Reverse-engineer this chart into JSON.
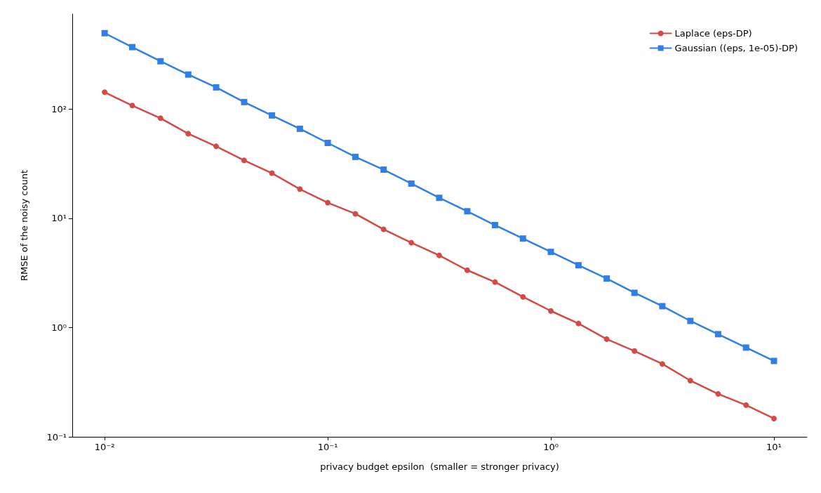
{
  "chart_data": {
    "type": "line",
    "xlabel": "privacy budget epsilon  (smaller = stronger privacy)",
    "ylabel": "RMSE of the noisy count",
    "log": "xy",
    "grid": false,
    "legend": "top right",
    "line_style": "solid",
    "x": [
      0.01,
      0.0133,
      0.0178,
      0.0237,
      0.0316,
      0.0422,
      0.0562,
      0.075,
      0.1,
      0.133,
      0.178,
      0.237,
      0.316,
      0.422,
      0.562,
      0.75,
      1,
      1.33,
      1.78,
      2.37,
      3.16,
      4.22,
      5.62,
      7.5,
      10
    ],
    "series": [
      {
        "name": "Laplace (eps-DP)",
        "color": "#d44a45",
        "marker": "circle",
        "values": [
          142.7,
          107.7,
          82.5,
          59.5,
          45.6,
          33.9,
          25.9,
          18.5,
          13.9,
          11.0,
          7.93,
          5.98,
          4.58,
          3.35,
          2.61,
          1.91,
          1.42,
          1.09,
          0.784,
          0.61,
          0.465,
          0.327,
          0.247,
          0.195,
          0.147
        ]
      },
      {
        "name": "Gaussian ((eps, 1e-05)-DP)",
        "color": "#2f7fe6",
        "marker": "square",
        "values": [
          495,
          369,
          274,
          207,
          158,
          116,
          87.5,
          66,
          49,
          36.5,
          27.9,
          20.8,
          15.4,
          11.6,
          8.67,
          6.53,
          4.93,
          3.72,
          2.81,
          2.08,
          1.57,
          1.15,
          0.87,
          0.656,
          0.495
        ]
      }
    ],
    "xlim": [
      0.00716,
      14.06
    ],
    "ylim": [
      0.1,
      741
    ],
    "xticks": [
      {
        "value": 0.01,
        "label": "10⁻²"
      },
      {
        "value": 0.1,
        "label": "10⁻¹"
      },
      {
        "value": 1,
        "label": "10⁰"
      },
      {
        "value": 10,
        "label": "10¹"
      }
    ],
    "yticks": [
      {
        "value": 0.1,
        "label": "10⁻¹"
      },
      {
        "value": 1,
        "label": "10⁰"
      },
      {
        "value": 10,
        "label": "10¹"
      },
      {
        "value": 100,
        "label": "10²"
      }
    ]
  }
}
